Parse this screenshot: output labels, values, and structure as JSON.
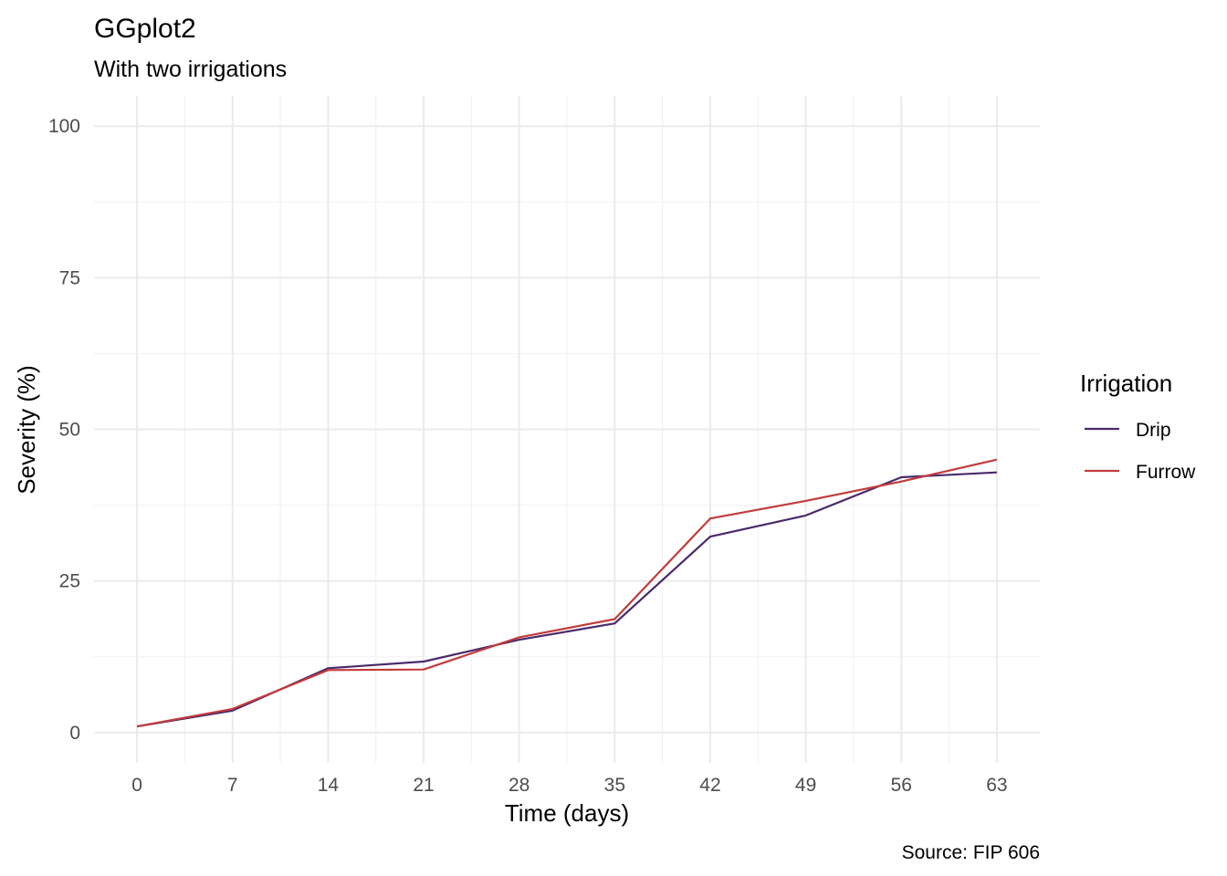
{
  "chart_data": {
    "type": "line",
    "title": "GGplot2",
    "subtitle": "With two irrigations",
    "caption": "Source: FIP 606",
    "xlabel": "Time (days)",
    "ylabel": "Severity (%)",
    "x": [
      0,
      7,
      14,
      21,
      28,
      35,
      42,
      49,
      56,
      63
    ],
    "xlim": [
      -3.15,
      66.15
    ],
    "ylim": [
      -5,
      105
    ],
    "x_ticks": [
      0,
      7,
      14,
      21,
      28,
      35,
      42,
      49,
      56,
      63
    ],
    "x_tick_labels": [
      "0",
      "7",
      "14",
      "21",
      "28",
      "35",
      "42",
      "49",
      "56",
      "63"
    ],
    "y_ticks": [
      0,
      25,
      50,
      75,
      100
    ],
    "y_tick_labels": [
      "0",
      "25",
      "50",
      "75",
      "100"
    ],
    "grid": true,
    "legend": {
      "title": "Irrigation",
      "position": "right"
    },
    "series": [
      {
        "name": "Drip",
        "color": "#4a2a6b",
        "values": [
          1.0,
          3.6,
          10.6,
          11.7,
          15.3,
          18.0,
          32.3,
          35.8,
          42.1,
          42.9
        ]
      },
      {
        "name": "Furrow",
        "color": "#c23b3b",
        "values": [
          1.0,
          3.9,
          10.3,
          10.4,
          15.7,
          18.7,
          35.3,
          38.2,
          41.4,
          45.0
        ]
      }
    ]
  }
}
